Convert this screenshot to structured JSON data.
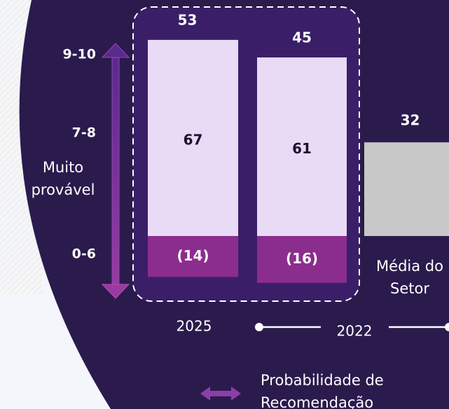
{
  "chart_data": {
    "type": "bar",
    "categories": [
      "2025",
      "2022",
      "Média do Setor"
    ],
    "series": [
      {
        "color": "#e9daf6",
        "values": [
          67,
          61,
          null
        ]
      },
      {
        "color": "#8b2d8e",
        "values": [
          -14,
          -16,
          null
        ],
        "value_labels": [
          "(14)",
          "(16)",
          null
        ]
      },
      {
        "color": "#c8c8c8",
        "values": [
          null,
          null,
          32
        ]
      }
    ],
    "totals": [
      53,
      45
    ],
    "scale_labels": [
      "9-10",
      "7-8",
      "0-6"
    ],
    "scale_title": "Muito provável",
    "legend_label": "Probabilidade de Recomendação"
  }
}
